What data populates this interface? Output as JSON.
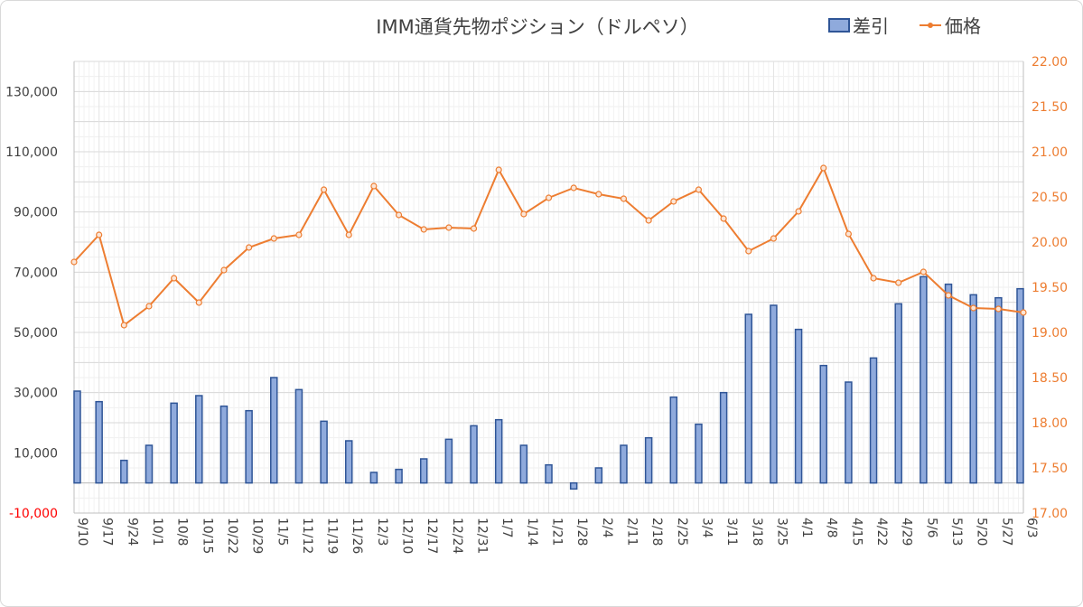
{
  "chart_data": {
    "type": "bar+line",
    "title": "IMM通貨先物ポジション（ドルペソ）",
    "categories": [
      "9/10",
      "9/17",
      "9/24",
      "10/1",
      "10/8",
      "10/15",
      "10/22",
      "10/29",
      "11/5",
      "11/12",
      "11/19",
      "11/26",
      "12/3",
      "12/10",
      "12/17",
      "12/24",
      "12/31",
      "1/7",
      "1/14",
      "1/21",
      "1/28",
      "2/4",
      "2/11",
      "2/18",
      "2/25",
      "3/4",
      "3/11",
      "3/18",
      "3/25",
      "4/1",
      "4/8",
      "4/15",
      "4/22",
      "4/29",
      "5/6",
      "5/13",
      "5/20",
      "5/27",
      "6/3"
    ],
    "series": [
      {
        "name": "差引",
        "type": "bar",
        "axis": "left",
        "color": "#4472c4",
        "values": [
          30500,
          27000,
          7500,
          12500,
          26500,
          29000,
          25500,
          24000,
          35000,
          31000,
          20500,
          14000,
          3500,
          4500,
          8000,
          14500,
          19000,
          21000,
          12500,
          6000,
          -2000,
          5000,
          12500,
          15000,
          28500,
          19500,
          30000,
          56000,
          59000,
          51000,
          39000,
          33500,
          41500,
          59500,
          68500,
          66000,
          62500,
          61500,
          64500
        ]
      },
      {
        "name": "価格",
        "type": "line",
        "axis": "right",
        "color": "#ed7d31",
        "values": [
          19.78,
          20.08,
          19.08,
          19.29,
          19.6,
          19.33,
          19.69,
          19.94,
          20.04,
          20.08,
          20.58,
          20.08,
          20.62,
          20.3,
          20.14,
          20.16,
          20.15,
          20.8,
          20.31,
          20.49,
          20.6,
          20.53,
          20.48,
          20.24,
          20.45,
          20.58,
          20.26,
          19.9,
          20.04,
          20.34,
          20.82,
          20.09,
          19.6,
          19.55,
          19.67,
          19.41,
          19.27,
          19.26,
          19.22
        ]
      }
    ],
    "y_left": {
      "min": -10000,
      "max": 140000,
      "tick_values": [
        -10000,
        10000,
        30000,
        50000,
        70000,
        90000,
        110000,
        130000
      ],
      "tick_labels": [
        "-10,000",
        "10,000",
        "30,000",
        "50,000",
        "70,000",
        "90,000",
        "110,000",
        "130,000"
      ],
      "negative_label_color": "#ff0000"
    },
    "y_right": {
      "min": 17.0,
      "max": 22.0,
      "tick_values": [
        17.0,
        17.5,
        18.0,
        18.5,
        19.0,
        19.5,
        20.0,
        20.5,
        21.0,
        21.5,
        22.0
      ],
      "tick_labels": [
        "17.00",
        "17.50",
        "18.00",
        "18.50",
        "19.00",
        "19.50",
        "20.00",
        "20.50",
        "21.00",
        "21.50",
        "22.00"
      ]
    },
    "legend_position": "top-right",
    "grid": true,
    "minor_grid": true
  }
}
